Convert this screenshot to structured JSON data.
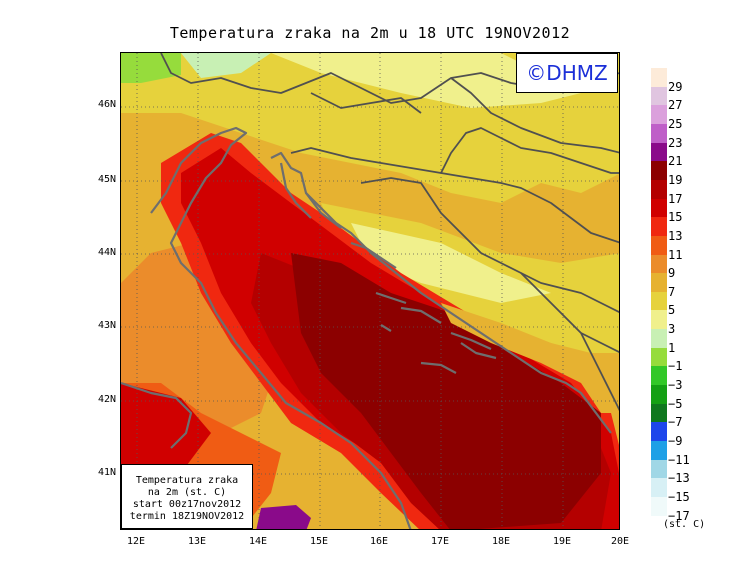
{
  "title": "Temperatura zraka na 2m u 18 UTC 19NOV2012",
  "logo": "©DHMZ",
  "info": {
    "line1": "Temperatura zraka",
    "line2": "na 2m (st. C)",
    "line3": "start 00z17nov2012",
    "line4": "termin 18Z19NOV2012"
  },
  "axes": {
    "lon_ticks": [
      "12E",
      "13E",
      "14E",
      "15E",
      "16E",
      "17E",
      "18E",
      "19E",
      "20E"
    ],
    "lat_ticks": [
      "46N",
      "45N",
      "44N",
      "43N",
      "42N",
      "41N"
    ]
  },
  "legend": {
    "units": "(st. C)",
    "labels": [
      "29",
      "27",
      "25",
      "23",
      "21",
      "19",
      "17",
      "15",
      "13",
      "11",
      "9",
      "7",
      "5",
      "3",
      "1",
      "−1",
      "−3",
      "−5",
      "−7",
      "−9",
      "−11",
      "−13",
      "−15",
      "−17"
    ],
    "colors": [
      "#fdebd9",
      "#e0c5e0",
      "#dba0dc",
      "#bf5fc8",
      "#8a0a8a",
      "#8c0000",
      "#b40000",
      "#d00000",
      "#f02810",
      "#f05c14",
      "#eb8c2b",
      "#e6b231",
      "#e6d23c",
      "#f0f08c",
      "#c8f0b4",
      "#96dc3c",
      "#32c828",
      "#14a014",
      "#0f781e",
      "#1e46eb",
      "#1ea0e6",
      "#a0d7e6",
      "#d7f0f5",
      "#f0fafa"
    ]
  },
  "colors": {
    "coast": "#6e6e6e",
    "border": "#505050",
    "sea_warm": "#8c0000",
    "land_cool": "#e6d23c"
  }
}
